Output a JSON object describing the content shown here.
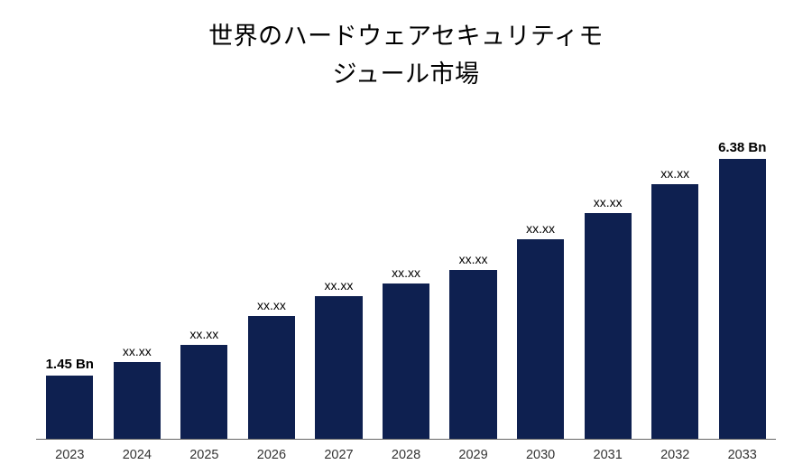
{
  "chart": {
    "type": "bar",
    "title_line1": "世界のハードウェアセキュリティモ",
    "title_line2": "ジュール市場",
    "title_fontsize": 27,
    "title_color": "#000000",
    "background_color": "#ffffff",
    "bar_color": "#0e2050",
    "axis_line_color": "#666666",
    "categories": [
      "2023",
      "2024",
      "2025",
      "2026",
      "2027",
      "2028",
      "2029",
      "2030",
      "2031",
      "2032",
      "2033"
    ],
    "values": [
      1.45,
      1.75,
      2.15,
      2.8,
      3.25,
      3.55,
      3.85,
      4.55,
      5.15,
      5.8,
      6.38
    ],
    "data_labels": [
      "1.45 Bn",
      "xx.xx",
      "xx.xx",
      "xx.xx",
      "xx.xx",
      "xx.xx",
      "xx.xx",
      "xx.xx",
      "xx.xx",
      "xx.xx",
      "6.38 Bn"
    ],
    "label_bold": [
      true,
      false,
      false,
      false,
      false,
      false,
      false,
      false,
      false,
      false,
      true
    ],
    "ylim": [
      0,
      6.38
    ],
    "bar_width": 0.7,
    "label_fontsize": 14,
    "label_fontsize_bold": 15,
    "category_fontsize": 14.5,
    "category_color": "#333333"
  }
}
